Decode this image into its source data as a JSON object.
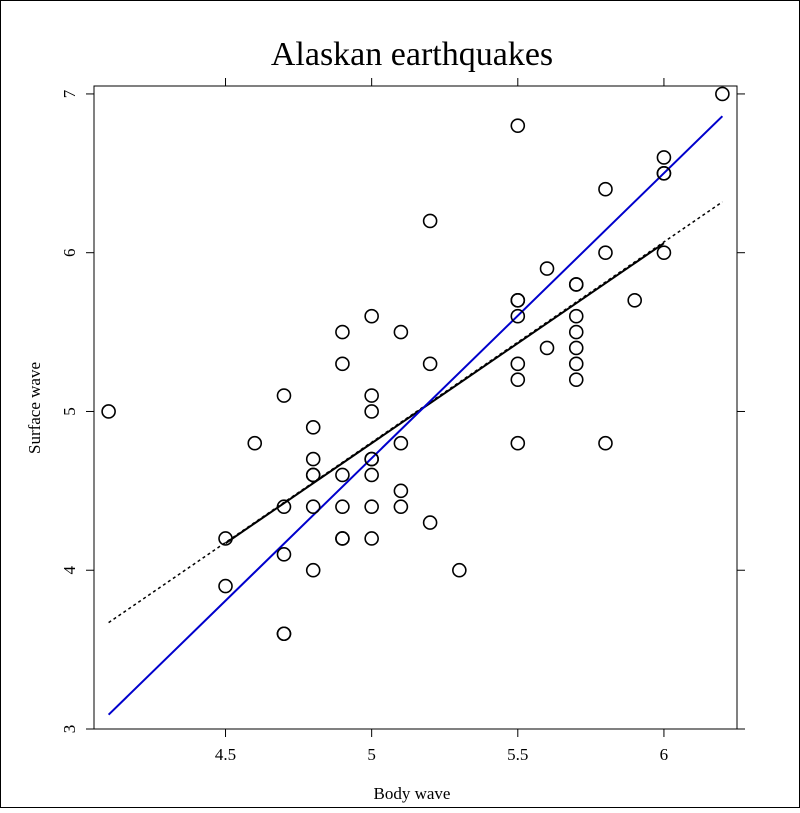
{
  "chart_data": {
    "type": "scatter",
    "title": "Alaskan earthquakes",
    "xlabel": "Body wave",
    "ylabel": "Surface wave",
    "xlim": [
      4.05,
      6.25
    ],
    "ylim": [
      3.0,
      7.05
    ],
    "xticks": [
      4.5,
      5,
      5.5,
      6
    ],
    "xtick_labels": [
      "4.5",
      "5",
      "5.5",
      "6"
    ],
    "yticks": [
      3,
      4,
      5,
      6,
      7
    ],
    "ytick_labels": [
      "3",
      "4",
      "5",
      "6",
      "7"
    ],
    "grid": false,
    "points": [
      {
        "x": 4.1,
        "y": 5.0
      },
      {
        "x": 4.5,
        "y": 4.2
      },
      {
        "x": 4.5,
        "y": 3.9
      },
      {
        "x": 4.6,
        "y": 4.8
      },
      {
        "x": 4.7,
        "y": 5.1
      },
      {
        "x": 4.7,
        "y": 4.4
      },
      {
        "x": 4.7,
        "y": 4.1
      },
      {
        "x": 4.7,
        "y": 3.6
      },
      {
        "x": 4.7,
        "y": 3.6
      },
      {
        "x": 4.8,
        "y": 4.9
      },
      {
        "x": 4.8,
        "y": 4.7
      },
      {
        "x": 4.8,
        "y": 4.6
      },
      {
        "x": 4.8,
        "y": 4.6
      },
      {
        "x": 4.8,
        "y": 4.4
      },
      {
        "x": 4.8,
        "y": 4.0
      },
      {
        "x": 4.9,
        "y": 5.5
      },
      {
        "x": 4.9,
        "y": 5.3
      },
      {
        "x": 4.9,
        "y": 4.6
      },
      {
        "x": 4.9,
        "y": 4.4
      },
      {
        "x": 4.9,
        "y": 4.2
      },
      {
        "x": 4.9,
        "y": 4.2
      },
      {
        "x": 5.0,
        "y": 5.6
      },
      {
        "x": 5.0,
        "y": 5.1
      },
      {
        "x": 5.0,
        "y": 5.0
      },
      {
        "x": 5.0,
        "y": 4.7
      },
      {
        "x": 5.0,
        "y": 4.7
      },
      {
        "x": 5.0,
        "y": 4.6
      },
      {
        "x": 5.0,
        "y": 4.4
      },
      {
        "x": 5.0,
        "y": 4.2
      },
      {
        "x": 5.1,
        "y": 5.5
      },
      {
        "x": 5.1,
        "y": 4.8
      },
      {
        "x": 5.1,
        "y": 4.5
      },
      {
        "x": 5.1,
        "y": 4.4
      },
      {
        "x": 5.2,
        "y": 6.2
      },
      {
        "x": 5.2,
        "y": 5.3
      },
      {
        "x": 5.2,
        "y": 4.3
      },
      {
        "x": 5.3,
        "y": 4.0
      },
      {
        "x": 5.5,
        "y": 6.8
      },
      {
        "x": 5.5,
        "y": 5.7
      },
      {
        "x": 5.5,
        "y": 5.7
      },
      {
        "x": 5.5,
        "y": 5.6
      },
      {
        "x": 5.5,
        "y": 5.3
      },
      {
        "x": 5.5,
        "y": 5.2
      },
      {
        "x": 5.5,
        "y": 4.8
      },
      {
        "x": 5.6,
        "y": 5.9
      },
      {
        "x": 5.6,
        "y": 5.4
      },
      {
        "x": 5.7,
        "y": 5.8
      },
      {
        "x": 5.7,
        "y": 5.8
      },
      {
        "x": 5.7,
        "y": 5.6
      },
      {
        "x": 5.7,
        "y": 5.5
      },
      {
        "x": 5.7,
        "y": 5.4
      },
      {
        "x": 5.7,
        "y": 5.3
      },
      {
        "x": 5.7,
        "y": 5.2
      },
      {
        "x": 5.8,
        "y": 6.4
      },
      {
        "x": 5.8,
        "y": 6.0
      },
      {
        "x": 5.8,
        "y": 4.8
      },
      {
        "x": 5.9,
        "y": 5.7
      },
      {
        "x": 6.0,
        "y": 6.6
      },
      {
        "x": 6.0,
        "y": 6.5
      },
      {
        "x": 6.0,
        "y": 6.5
      },
      {
        "x": 6.0,
        "y": 6.0
      },
      {
        "x": 6.2,
        "y": 7.0
      }
    ],
    "lines": [
      {
        "style": "dashed",
        "color": "#000000",
        "x": [
          4.1,
          6.2
        ],
        "y": [
          3.67,
          6.32
        ]
      },
      {
        "style": "solid",
        "color": "#000000",
        "x": [
          4.5,
          6.0
        ],
        "y": [
          4.17,
          6.06
        ]
      },
      {
        "style": "solid",
        "color": "#0000cc",
        "x": [
          4.1,
          6.2
        ],
        "y": [
          3.09,
          6.86
        ]
      }
    ]
  }
}
